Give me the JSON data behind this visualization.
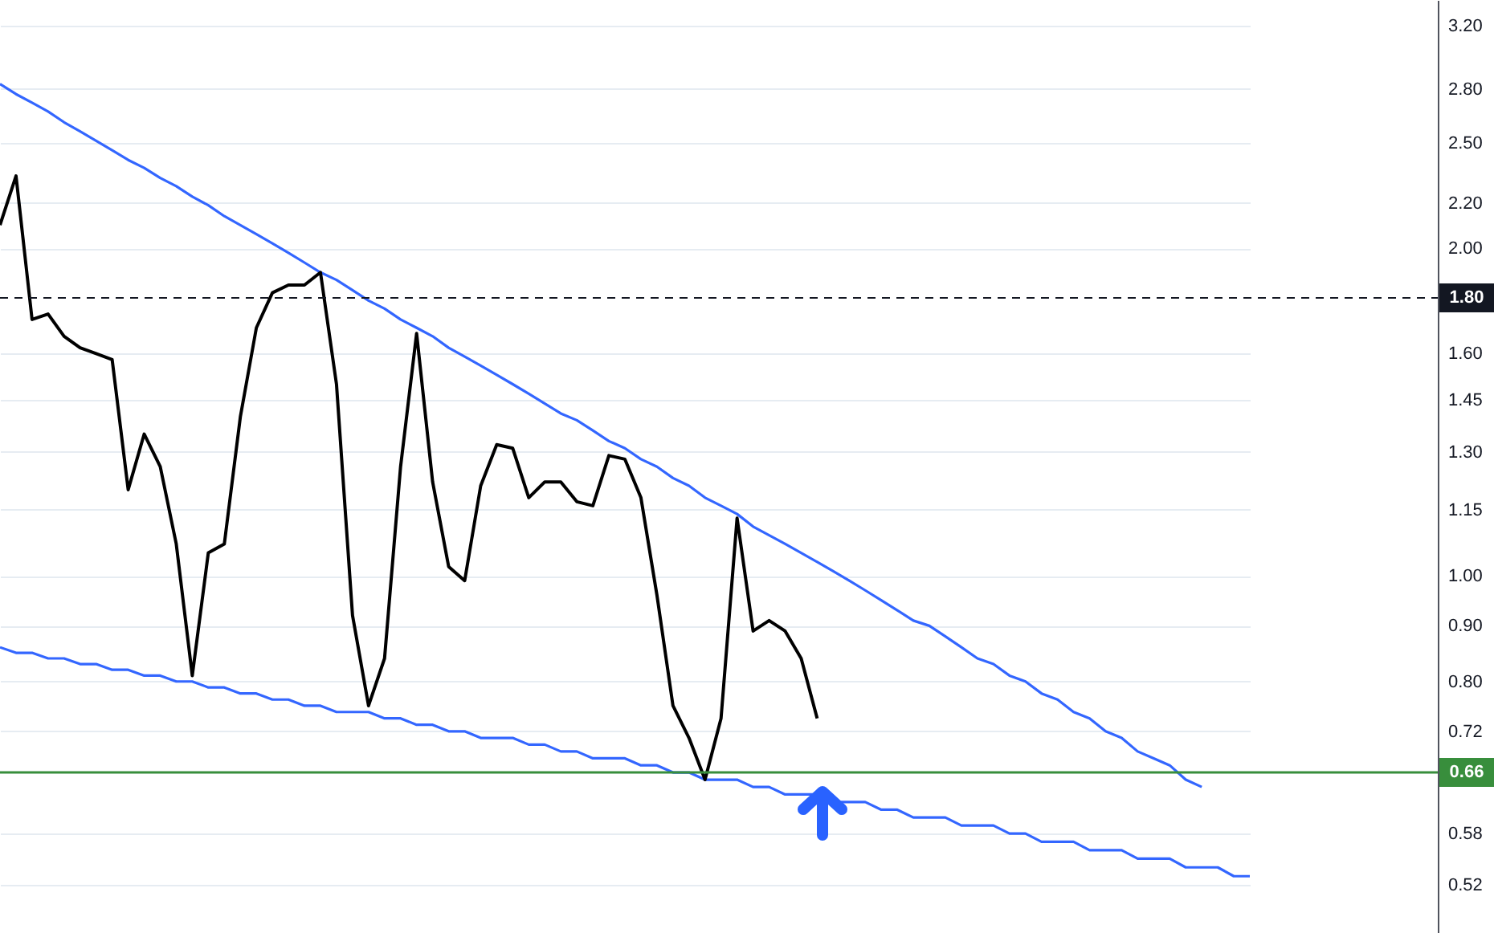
{
  "chart_data": {
    "type": "line",
    "categories": [
      null,
      null,
      null,
      null,
      null,
      null,
      null,
      null,
      null,
      null,
      null,
      null,
      null,
      null,
      null,
      null,
      null,
      null,
      null,
      null,
      null,
      null,
      null,
      null,
      null,
      null,
      null,
      null,
      null,
      null,
      null,
      null,
      null,
      null,
      null,
      null,
      null,
      null,
      null,
      null,
      null,
      null,
      null,
      null,
      null,
      null,
      null,
      null,
      null,
      null,
      null,
      null,
      null,
      null,
      null,
      null,
      null,
      null,
      null,
      null,
      null,
      null,
      null,
      null,
      null,
      null,
      null,
      null,
      null,
      null,
      null,
      null,
      null,
      null,
      null,
      null,
      null,
      null,
      null
    ],
    "series": [
      {
        "color": "#3366ff",
        "values": [
          0.86,
          0.85,
          0.85,
          0.84,
          0.84,
          0.83,
          0.83,
          0.82,
          0.82,
          0.81,
          0.81,
          0.8,
          0.8,
          0.79,
          0.79,
          0.78,
          0.78,
          0.77,
          0.77,
          0.76,
          0.76,
          0.75,
          0.75,
          0.75,
          0.74,
          0.74,
          0.73,
          0.73,
          0.72,
          0.72,
          0.71,
          0.71,
          0.71,
          0.7,
          0.7,
          0.69,
          0.69,
          0.68,
          0.68,
          0.68,
          0.67,
          0.67,
          0.66,
          0.66,
          0.65,
          0.65,
          0.65,
          0.64,
          0.64,
          0.63,
          0.63,
          0.63,
          0.62,
          0.62,
          0.62,
          0.61,
          0.61,
          0.6,
          0.6,
          0.6,
          0.59,
          0.59,
          0.59,
          0.58,
          0.58,
          0.57,
          0.57,
          0.57,
          0.56,
          0.56,
          0.56,
          0.55,
          0.55,
          0.55,
          0.54,
          0.54,
          0.54,
          0.53,
          0.53
        ]
      },
      {
        "color": "#3366ff",
        "values": [
          2.83,
          2.77,
          2.72,
          2.67,
          2.61,
          2.56,
          2.51,
          2.46,
          2.41,
          2.37,
          2.32,
          2.28,
          2.23,
          2.19,
          2.14,
          2.1,
          2.06,
          2.02,
          1.98,
          1.94,
          1.9,
          1.87,
          1.83,
          1.79,
          1.76,
          1.72,
          1.69,
          1.66,
          1.62,
          1.59,
          1.56,
          1.53,
          1.5,
          1.47,
          1.44,
          1.41,
          1.39,
          1.36,
          1.33,
          1.31,
          1.28,
          1.26,
          1.23,
          1.21,
          1.18,
          1.16,
          1.14,
          1.11,
          1.09,
          1.07,
          1.05,
          1.03,
          1.01,
          0.99,
          0.97,
          0.95,
          0.93,
          0.91,
          0.9,
          0.88,
          0.86,
          0.84,
          0.83,
          0.81,
          0.8,
          0.78,
          0.77,
          0.75,
          0.74,
          0.72,
          0.71,
          0.69,
          0.68,
          0.67,
          0.65,
          0.64,
          null,
          null,
          null
        ]
      },
      {
        "color": "#000000",
        "values": [
          2.1,
          2.33,
          1.72,
          1.74,
          1.66,
          1.62,
          1.6,
          1.58,
          1.2,
          1.35,
          1.26,
          1.07,
          0.81,
          1.05,
          1.07,
          1.4,
          1.69,
          1.82,
          1.85,
          1.85,
          1.9,
          1.5,
          0.92,
          0.76,
          0.84,
          1.26,
          1.67,
          1.22,
          1.02,
          0.99,
          1.21,
          1.32,
          1.31,
          1.18,
          1.22,
          1.22,
          1.17,
          1.16,
          1.29,
          1.28,
          1.18,
          0.96,
          0.76,
          0.71,
          0.65,
          0.74,
          1.13,
          0.89,
          0.91,
          0.89,
          0.84,
          0.74,
          null,
          null,
          null,
          null,
          null,
          null,
          null,
          null,
          null,
          null,
          null,
          null,
          null,
          null,
          null,
          null,
          null,
          null,
          null,
          null,
          null,
          null,
          null,
          null,
          null,
          null,
          null
        ]
      }
    ],
    "log": "y",
    "ylim": [
      0.47,
      3.38
    ],
    "yticks": [
      0.52,
      0.58,
      0.72,
      {
        "value": 0.8,
        "label": "0.80"
      },
      {
        "value": 0.9,
        "label": "0.90"
      },
      {
        "value": 1,
        "label": "1.00"
      },
      {
        "value": 1.15,
        "label": "1.15"
      },
      {
        "value": 1.3,
        "label": "1.30"
      },
      {
        "value": 1.45,
        "label": "1.45"
      },
      {
        "value": 1.6,
        "label": "1.60"
      },
      {
        "value": 2,
        "label": "2.00"
      },
      {
        "value": 2.2,
        "label": "2.20"
      },
      {
        "value": 2.5,
        "label": "2.50"
      },
      {
        "value": 2.8,
        "label": "2.80"
      },
      {
        "value": 3.2,
        "label": "3.20"
      }
    ],
    "ref_lines": [
      {
        "axis": "y",
        "value": 1.8,
        "label": "1.80",
        "color": "#131722",
        "line_style": "dashed"
      },
      {
        "axis": "y",
        "value": 0.66,
        "label": "0.66",
        "color": "#388e3c",
        "line_style": "solid"
      }
    ],
    "grid": "y",
    "marker": "none",
    "line_style": "solid",
    "tick_labels": "y"
  }
}
